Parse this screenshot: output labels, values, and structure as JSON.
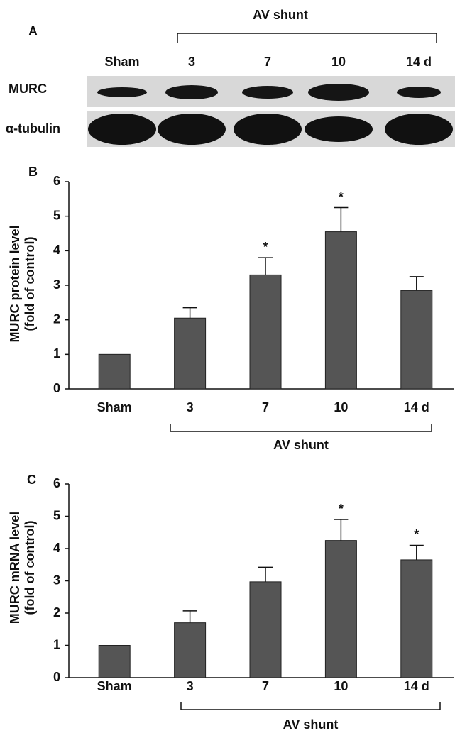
{
  "panel_a": {
    "label": "A",
    "bracket_label": "AV shunt",
    "lanes": [
      "Sham",
      "3",
      "7",
      "10",
      "14 d"
    ],
    "rows": [
      "MURC",
      "α-tubulin"
    ]
  },
  "chart_data": [
    {
      "type": "bar",
      "label": "B",
      "ylabel": [
        "MURC protein level",
        "(fold of control)"
      ],
      "categories": [
        "Sham",
        "3",
        "7",
        "10",
        "14 d"
      ],
      "values": [
        1,
        2.05,
        3.3,
        4.55,
        2.85
      ],
      "errors": [
        0,
        0.3,
        0.5,
        0.7,
        0.4
      ],
      "markers": [
        null,
        null,
        "*",
        "*",
        null
      ],
      "color": "#555555",
      "ylim": [
        0,
        6
      ],
      "yticks": [
        0,
        1,
        2,
        3,
        4,
        5,
        6
      ],
      "bracket_label": "AV shunt"
    },
    {
      "type": "bar",
      "label": "C",
      "ylabel": [
        "MURC mRNA level",
        "(fold of control)"
      ],
      "categories": [
        "Sham",
        "3",
        "7",
        "10",
        "14 d"
      ],
      "values": [
        1,
        1.7,
        2.97,
        4.25,
        3.65
      ],
      "errors": [
        0,
        0.37,
        0.45,
        0.65,
        0.45
      ],
      "markers": [
        null,
        null,
        null,
        "*",
        "*"
      ],
      "color": "#555555",
      "ylim": [
        0,
        6
      ],
      "yticks": [
        0,
        1,
        2,
        3,
        4,
        5,
        6
      ],
      "bracket_label": "AV shunt"
    }
  ]
}
